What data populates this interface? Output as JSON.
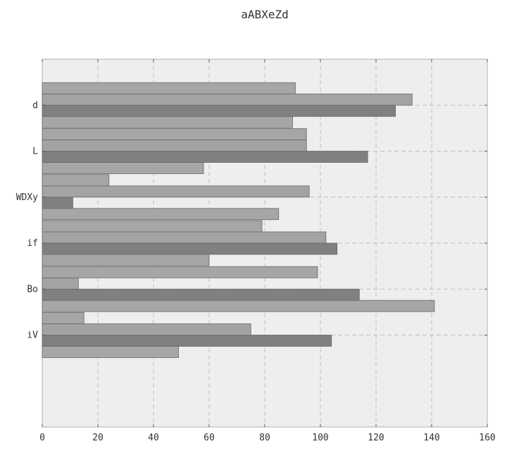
{
  "chart_data": {
    "type": "bar",
    "orientation": "horizontal",
    "title": "aABXeZd",
    "xlabel": "",
    "ylabel": "",
    "xlim": [
      0,
      160
    ],
    "x_ticks": [
      0,
      20,
      40,
      60,
      80,
      100,
      120,
      140,
      160
    ],
    "categories": [
      "iV",
      "Bo",
      "if",
      "WDXy",
      "L",
      "d"
    ],
    "grid": true,
    "legend": "none",
    "series": [
      {
        "values": [
          49,
          141,
          60,
          85,
          58,
          90
        ],
        "color": "#a6a6a6"
      },
      {
        "values": [
          104,
          114,
          106,
          11,
          117,
          127
        ],
        "color": "#808080"
      },
      {
        "values": [
          75,
          13,
          102,
          96,
          95,
          133
        ],
        "color": "#a3a3a3"
      },
      {
        "values": [
          15,
          99,
          79,
          24,
          95,
          91
        ],
        "color": "#a6a6a6"
      }
    ]
  }
}
